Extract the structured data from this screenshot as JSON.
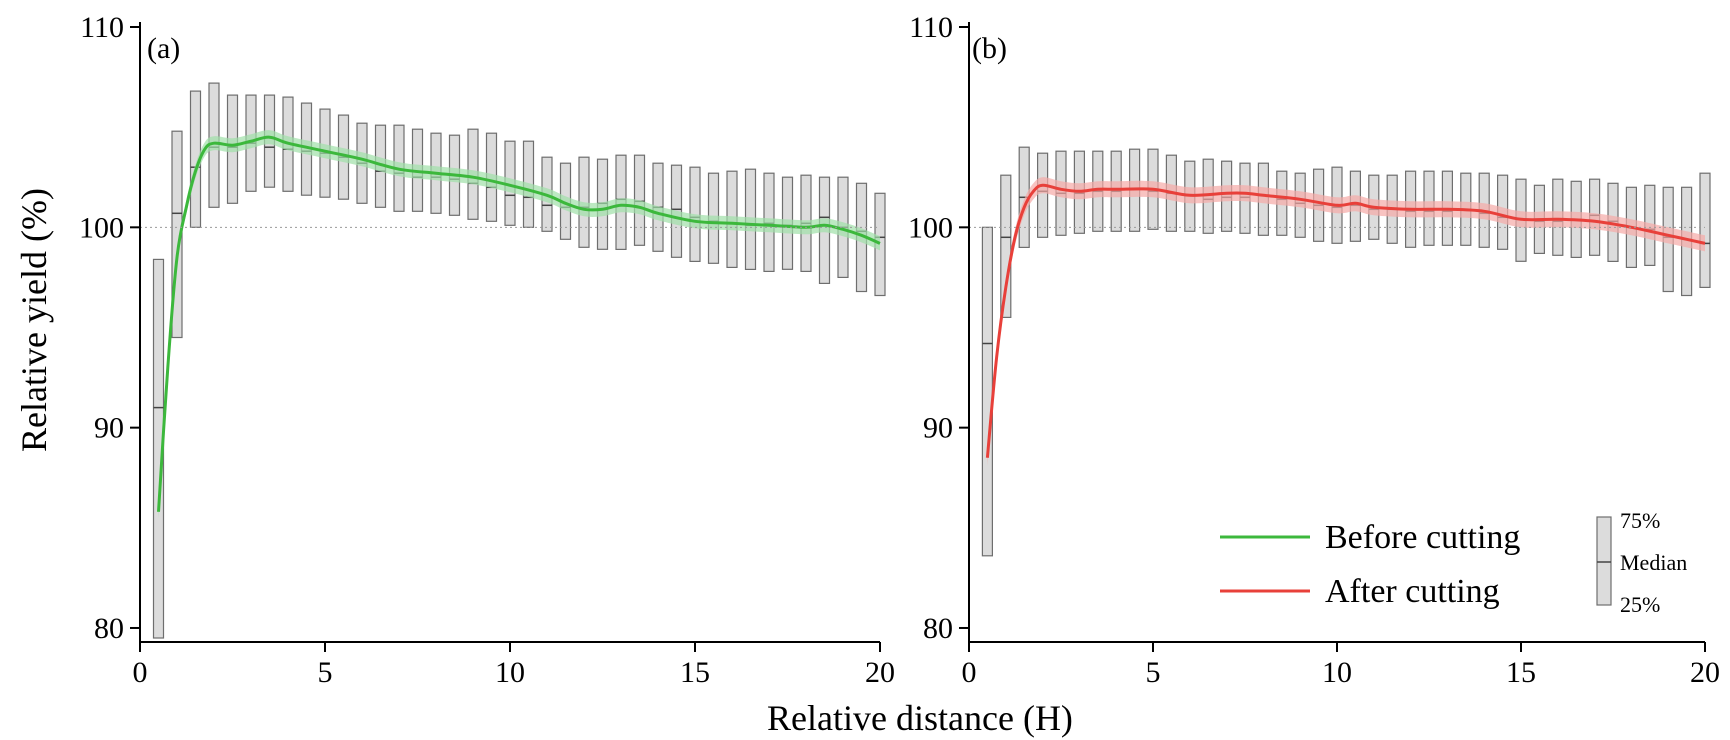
{
  "chart_data": {
    "type": "line",
    "xlabel": "Relative distance (H)",
    "ylabel": "Relative yield (%)",
    "xlim": [
      0,
      20
    ],
    "ylim": [
      79.3,
      110
    ],
    "xticks": [
      0,
      5,
      10,
      15,
      20
    ],
    "yticks": [
      80,
      90,
      100,
      110
    ],
    "reference_y": 100,
    "legend": {
      "position": "bottom-right of panel (b)",
      "entries": [
        {
          "label": "Before cutting",
          "color": "#3cb83c"
        },
        {
          "label": "After cutting",
          "color": "#e8403a"
        }
      ],
      "box_key": {
        "top": "75%",
        "middle": "Median",
        "bottom": "25%"
      }
    },
    "panels": [
      {
        "label": "(a)",
        "series_name": "Before cutting",
        "line_color": "#3cb83c",
        "band_color": "#9fe0a8",
        "line": {
          "x": [
            0.5,
            0.75,
            1.0,
            1.25,
            1.5,
            1.75,
            2.0,
            2.5,
            3.0,
            3.5,
            4.0,
            5.0,
            6.0,
            7.0,
            8.0,
            9.0,
            10.0,
            11.0,
            11.5,
            12.0,
            12.5,
            13.0,
            13.5,
            14.0,
            15.0,
            16.0,
            17.0,
            18.0,
            18.5,
            19.0,
            19.5,
            20.0
          ],
          "y": [
            85.8,
            93.0,
            98.5,
            101.0,
            102.8,
            103.9,
            104.2,
            104.1,
            104.3,
            104.5,
            104.2,
            103.8,
            103.4,
            102.9,
            102.7,
            102.5,
            102.1,
            101.6,
            101.2,
            100.9,
            100.9,
            101.1,
            101.0,
            100.7,
            100.3,
            100.2,
            100.1,
            100.0,
            100.1,
            99.9,
            99.6,
            99.2
          ]
        },
        "band_halfwidth": 0.35,
        "boxes": {
          "x": [
            0.5,
            1.0,
            1.5,
            2.0,
            2.5,
            3.0,
            3.5,
            4.0,
            4.5,
            5.0,
            5.5,
            6.0,
            6.5,
            7.0,
            7.5,
            8.0,
            8.5,
            9.0,
            9.5,
            10.0,
            10.5,
            11.0,
            11.5,
            12.0,
            12.5,
            13.0,
            13.5,
            14.0,
            14.5,
            15.0,
            15.5,
            16.0,
            16.5,
            17.0,
            17.5,
            18.0,
            18.5,
            19.0,
            19.5,
            20.0
          ],
          "q1": [
            79.5,
            94.5,
            100.0,
            101.0,
            101.2,
            101.8,
            102.0,
            101.8,
            101.6,
            101.5,
            101.4,
            101.2,
            101.0,
            100.8,
            100.8,
            100.7,
            100.6,
            100.4,
            100.3,
            100.1,
            100.0,
            99.8,
            99.4,
            99.0,
            98.9,
            98.9,
            99.1,
            98.8,
            98.5,
            98.3,
            98.2,
            98.0,
            97.9,
            97.8,
            97.9,
            97.8,
            97.2,
            97.5,
            96.8,
            96.6
          ],
          "median": [
            91.0,
            100.7,
            103.0,
            104.0,
            104.0,
            104.2,
            104.0,
            103.9,
            103.8,
            103.7,
            103.5,
            103.2,
            102.8,
            102.7,
            102.5,
            102.5,
            102.4,
            102.2,
            102.0,
            101.6,
            101.5,
            101.1,
            101.0,
            101.0,
            101.2,
            101.4,
            101.3,
            101.0,
            100.9,
            100.5,
            100.3,
            100.2,
            100.1,
            100.2,
            100.1,
            100.2,
            100.5,
            100.0,
            99.8,
            99.5
          ],
          "q3": [
            98.4,
            104.8,
            106.8,
            107.2,
            106.6,
            106.6,
            106.6,
            106.5,
            106.2,
            105.9,
            105.6,
            105.2,
            105.1,
            105.1,
            104.9,
            104.7,
            104.6,
            104.9,
            104.7,
            104.3,
            104.3,
            103.5,
            103.2,
            103.5,
            103.4,
            103.6,
            103.6,
            103.2,
            103.1,
            103.0,
            102.7,
            102.8,
            102.9,
            102.7,
            102.5,
            102.6,
            102.5,
            102.5,
            102.2,
            101.7
          ]
        }
      },
      {
        "label": "(b)",
        "series_name": "After cutting",
        "line_color": "#e8403a",
        "band_color": "#f5aaa6",
        "line": {
          "x": [
            0.5,
            0.75,
            1.0,
            1.25,
            1.5,
            1.75,
            2.0,
            2.5,
            3.0,
            3.5,
            4.0,
            5.0,
            6.0,
            7.0,
            7.5,
            8.0,
            9.0,
            10.0,
            10.5,
            11.0,
            12.0,
            13.0,
            14.0,
            15.0,
            16.0,
            17.0,
            18.0,
            19.0,
            19.5,
            20.0
          ],
          "y": [
            88.5,
            93.5,
            97.0,
            99.5,
            101.0,
            101.8,
            102.1,
            101.9,
            101.8,
            101.9,
            101.9,
            101.9,
            101.6,
            101.7,
            101.7,
            101.6,
            101.4,
            101.1,
            101.2,
            101.0,
            100.9,
            100.9,
            100.8,
            100.4,
            100.4,
            100.3,
            100.0,
            99.6,
            99.4,
            99.2
          ]
        },
        "band_halfwidth": 0.4,
        "boxes": {
          "x": [
            0.5,
            1.0,
            1.5,
            2.0,
            2.5,
            3.0,
            3.5,
            4.0,
            4.5,
            5.0,
            5.5,
            6.0,
            6.5,
            7.0,
            7.5,
            8.0,
            8.5,
            9.0,
            9.5,
            10.0,
            10.5,
            11.0,
            11.5,
            12.0,
            12.5,
            13.0,
            13.5,
            14.0,
            14.5,
            15.0,
            15.5,
            16.0,
            16.5,
            17.0,
            17.5,
            18.0,
            18.5,
            19.0,
            19.5,
            20.0
          ],
          "q1": [
            83.6,
            95.5,
            99.0,
            99.5,
            99.6,
            99.7,
            99.8,
            99.8,
            99.8,
            99.9,
            99.8,
            99.8,
            99.7,
            99.8,
            99.7,
            99.6,
            99.6,
            99.5,
            99.3,
            99.2,
            99.3,
            99.4,
            99.2,
            99.0,
            99.1,
            99.1,
            99.1,
            99.0,
            98.9,
            98.3,
            98.7,
            98.6,
            98.5,
            98.6,
            98.3,
            98.0,
            98.1,
            96.8,
            96.6,
            97.0
          ],
          "median": [
            94.2,
            99.5,
            101.5,
            101.8,
            101.7,
            101.7,
            101.8,
            101.8,
            101.9,
            101.8,
            101.7,
            101.6,
            101.4,
            101.5,
            101.5,
            101.6,
            101.4,
            101.2,
            101.1,
            101.0,
            101.1,
            100.9,
            100.9,
            100.8,
            100.8,
            100.8,
            100.9,
            100.7,
            100.5,
            100.4,
            100.3,
            100.3,
            100.4,
            100.6,
            100.3,
            100.0,
            99.9,
            99.5,
            99.4,
            99.2
          ],
          "q3": [
            100.0,
            102.6,
            104.0,
            103.7,
            103.8,
            103.8,
            103.8,
            103.8,
            103.9,
            103.9,
            103.6,
            103.3,
            103.4,
            103.3,
            103.2,
            103.2,
            102.8,
            102.7,
            102.9,
            103.0,
            102.8,
            102.6,
            102.6,
            102.8,
            102.8,
            102.8,
            102.7,
            102.7,
            102.6,
            102.4,
            102.1,
            102.4,
            102.3,
            102.4,
            102.2,
            102.0,
            102.1,
            102.0,
            102.0,
            102.7
          ]
        }
      }
    ]
  }
}
